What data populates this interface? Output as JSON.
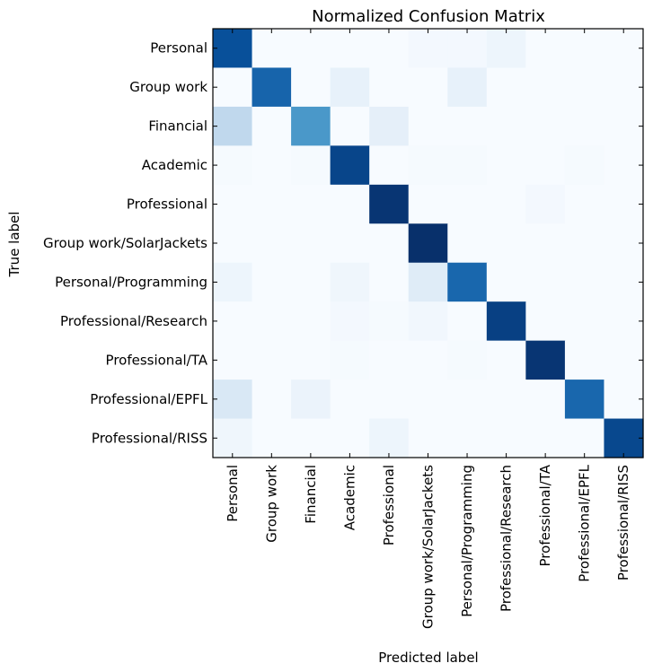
{
  "chart_data": {
    "type": "heatmap",
    "title": "Normalized Confusion Matrix",
    "xlabel": "Predicted label",
    "ylabel": "True label",
    "colormap": "Blues",
    "value_range": [
      0,
      1
    ],
    "grid": false,
    "colorbar": false,
    "x_categories": [
      "Personal",
      "Group work",
      "Financial",
      "Academic",
      "Professional",
      "Group work/SolarJackets",
      "Personal/Programming",
      "Professional/Research",
      "Professional/TA",
      "Professional/EPFL",
      "Professional/RISS"
    ],
    "y_categories": [
      "Personal",
      "Group work",
      "Financial",
      "Academic",
      "Professional",
      "Group work/SolarJackets",
      "Personal/Programming",
      "Professional/Research",
      "Professional/TA",
      "Professional/EPFL",
      "Professional/RISS"
    ],
    "values": [
      [
        0.88,
        0.0,
        0.0,
        0.0,
        0.0,
        0.02,
        0.02,
        0.05,
        0.0,
        0.0,
        0.0
      ],
      [
        0.0,
        0.8,
        0.0,
        0.08,
        0.0,
        0.0,
        0.08,
        0.0,
        0.0,
        0.0,
        0.0
      ],
      [
        0.27,
        0.0,
        0.6,
        0.0,
        0.09,
        0.0,
        0.0,
        0.0,
        0.0,
        0.0,
        0.0
      ],
      [
        0.01,
        0.0,
        0.01,
        0.92,
        0.0,
        0.01,
        0.01,
        0.0,
        0.0,
        0.01,
        0.0
      ],
      [
        0.0,
        0.0,
        0.0,
        0.0,
        0.98,
        0.0,
        0.0,
        0.0,
        0.02,
        0.0,
        0.0
      ],
      [
        0.0,
        0.0,
        0.0,
        0.0,
        0.0,
        1.0,
        0.0,
        0.0,
        0.0,
        0.0,
        0.0
      ],
      [
        0.05,
        0.0,
        0.0,
        0.04,
        0.0,
        0.12,
        0.79,
        0.0,
        0.0,
        0.0,
        0.0
      ],
      [
        0.0,
        0.0,
        0.0,
        0.02,
        0.01,
        0.03,
        0.0,
        0.94,
        0.0,
        0.0,
        0.0
      ],
      [
        0.0,
        0.0,
        0.0,
        0.01,
        0.0,
        0.0,
        0.01,
        0.0,
        0.98,
        0.0,
        0.0
      ],
      [
        0.15,
        0.0,
        0.06,
        0.0,
        0.0,
        0.0,
        0.0,
        0.0,
        0.0,
        0.79,
        0.0
      ],
      [
        0.04,
        0.0,
        0.0,
        0.0,
        0.05,
        0.0,
        0.0,
        0.0,
        0.0,
        0.0,
        0.91
      ]
    ]
  }
}
